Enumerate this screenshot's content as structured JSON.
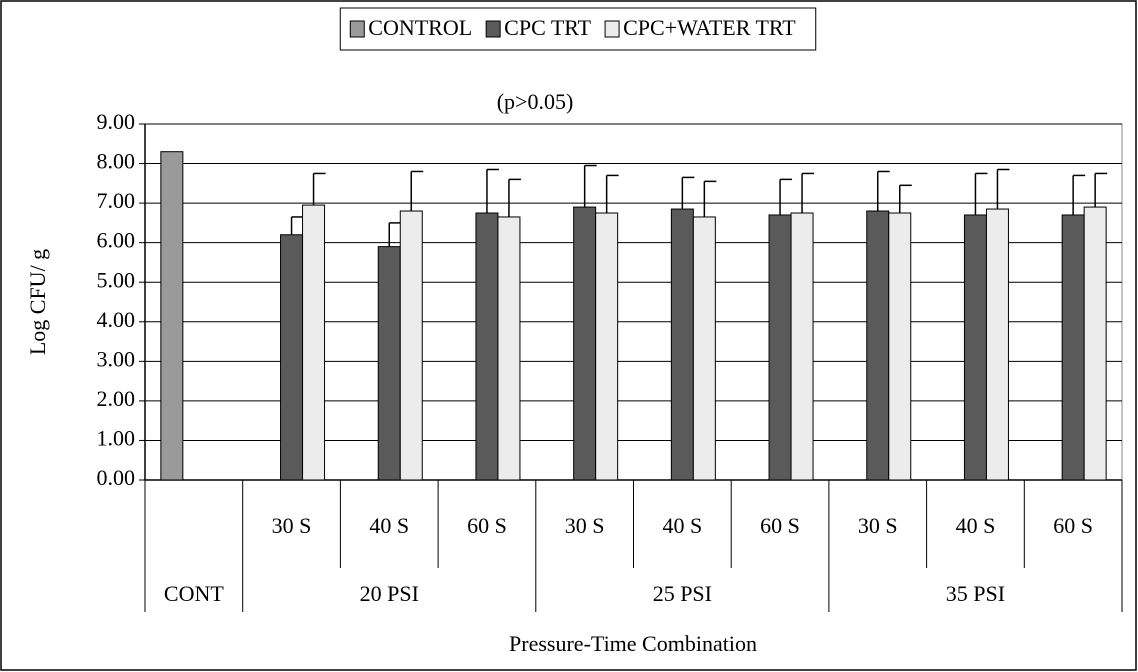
{
  "chart_data": {
    "type": "bar",
    "subtitle": "(p>0.05)",
    "y_label": "Log CFU/ g",
    "x_label": "Pressure-Time Combination",
    "categories": [
      null,
      "30 S",
      "40 S",
      "60 S",
      "30 S",
      "40 S",
      "60 S",
      "30 S",
      "40 S",
      "60 S"
    ],
    "groups": [
      {
        "label": "CONT",
        "span": 1
      },
      {
        "label": "20 PSI",
        "span": 3
      },
      {
        "label": "25 PSI",
        "span": 3
      },
      {
        "label": "35 PSI",
        "span": 3
      }
    ],
    "series": [
      {
        "name": "CONTROL",
        "color": "#9a9a9a",
        "values": [
          8.3,
          null,
          null,
          null,
          null,
          null,
          null,
          null,
          null,
          null
        ],
        "errors": [
          null,
          null,
          null,
          null,
          null,
          null,
          null,
          null,
          null,
          null
        ]
      },
      {
        "name": "CPC TRT",
        "color": "#5a5a5a",
        "values": [
          null,
          6.2,
          5.9,
          6.75,
          6.9,
          6.85,
          6.7,
          6.8,
          6.7,
          6.7
        ],
        "errors": [
          null,
          0.45,
          0.6,
          1.1,
          1.05,
          0.8,
          0.9,
          1.0,
          1.05,
          1.0
        ]
      },
      {
        "name": "CPC+WATER TRT",
        "color": "#ececec",
        "values": [
          null,
          6.95,
          6.8,
          6.65,
          6.75,
          6.65,
          6.75,
          6.75,
          6.85,
          6.9
        ],
        "errors": [
          null,
          0.8,
          1.0,
          0.95,
          0.95,
          0.9,
          1.0,
          0.7,
          1.0,
          0.85
        ]
      }
    ],
    "ylim": [
      0,
      9
    ],
    "yticks": [
      {
        "value": 0,
        "label": "0.00"
      },
      {
        "value": 1,
        "label": "1.00"
      },
      {
        "value": 2,
        "label": "2.00"
      },
      {
        "value": 3,
        "label": "3.00"
      },
      {
        "value": 4,
        "label": "4.00"
      },
      {
        "value": 5,
        "label": "5.00"
      },
      {
        "value": 6,
        "label": "6.00"
      },
      {
        "value": 7,
        "label": "7.00"
      },
      {
        "value": 8,
        "label": "8.00"
      },
      {
        "value": 9,
        "label": "9.00"
      }
    ],
    "grid": true,
    "legend": "top"
  }
}
